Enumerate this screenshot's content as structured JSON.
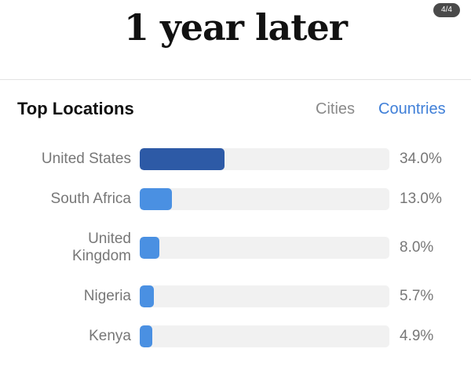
{
  "headline": "1 year later",
  "page_indicator": "4/4",
  "section": {
    "title": "Top Locations",
    "tabs": [
      {
        "label": "Cities",
        "active": false
      },
      {
        "label": "Countries",
        "active": true
      }
    ]
  },
  "colors": {
    "top_bar": "#2d5aa6",
    "bar": "#4a90e2",
    "track": "#f1f1f1",
    "active_tab": "#3f7fd8"
  },
  "locations": [
    {
      "label": "United States",
      "value": "34.0%",
      "percent": 34.0
    },
    {
      "label": "South Africa",
      "value": "13.0%",
      "percent": 13.0
    },
    {
      "label": "United\nKingdom",
      "value": "8.0%",
      "percent": 8.0
    },
    {
      "label": "Nigeria",
      "value": "5.7%",
      "percent": 5.7
    },
    {
      "label": "Kenya",
      "value": "4.9%",
      "percent": 4.9
    }
  ]
}
